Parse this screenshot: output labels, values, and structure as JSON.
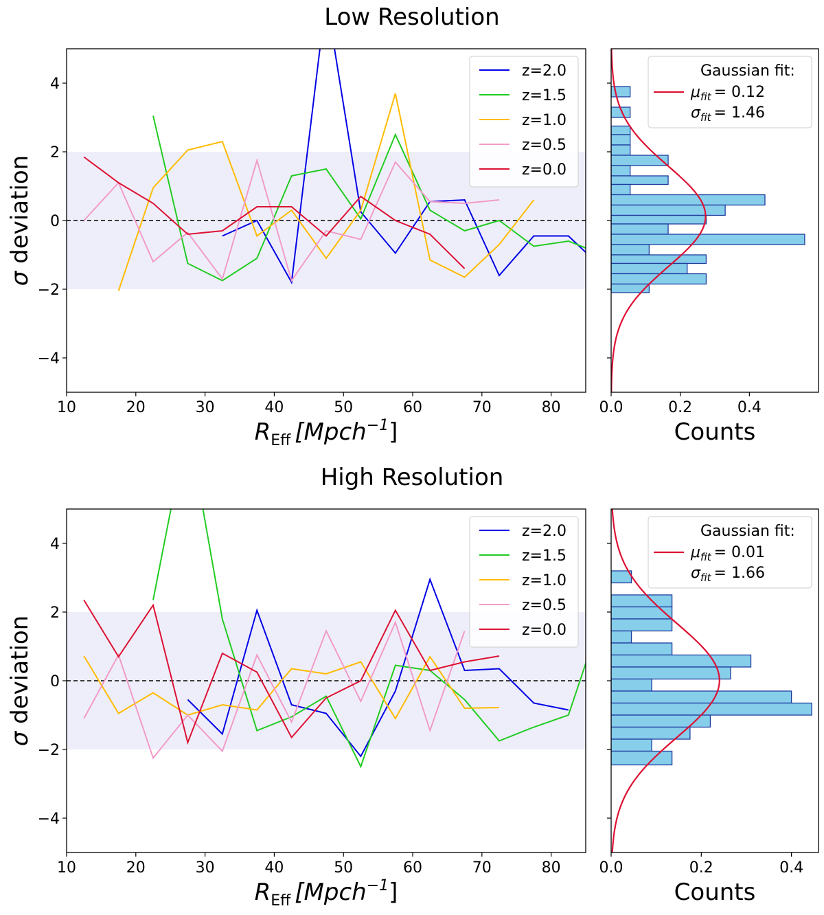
{
  "chart_data": [
    {
      "type": "line",
      "title": "Low Resolution",
      "xlabel_main": "R",
      "xlabel_sub": "Eff",
      "xlabel_unit": "[Mpch",
      "xlabel_exp": "−1",
      "xlabel_close": "]",
      "ylabel_sym": "σ",
      "ylabel": " deviation",
      "xlim": [
        10,
        85
      ],
      "ylim": [
        -5,
        5
      ],
      "xticks": [
        "10",
        "20",
        "30",
        "40",
        "50",
        "60",
        "70",
        "80"
      ],
      "yticks": [
        "−4",
        "−2",
        "0",
        "2",
        "4"
      ],
      "shaded_band": [
        -2,
        2
      ],
      "reference_line": 0,
      "legend_position": "top-right",
      "series": [
        {
          "name": "z=2.0",
          "color": "#0000e6",
          "x": [
            32.5,
            37.5,
            42.5,
            47.5,
            52.5,
            57.5,
            62.5,
            67.5,
            72.5,
            77.5,
            82.5,
            87.5
          ],
          "y": [
            -0.45,
            0.0,
            -1.8,
            6.5,
            0.25,
            -0.95,
            0.55,
            0.6,
            -1.6,
            -0.45,
            -0.45,
            -1.4
          ]
        },
        {
          "name": "z=1.5",
          "color": "#22cc22",
          "x": [
            22.5,
            27.5,
            32.5,
            37.5,
            42.5,
            47.5,
            52.5,
            57.5,
            62.5,
            67.5,
            72.5,
            77.5,
            82.5,
            87.5
          ],
          "y": [
            3.05,
            -1.25,
            -1.75,
            -1.1,
            1.3,
            1.5,
            0.05,
            2.5,
            0.3,
            -0.3,
            0.0,
            -0.75,
            -0.6,
            -1.0
          ]
        },
        {
          "name": "z=1.0",
          "color": "#ffbb00",
          "x": [
            17.5,
            22.5,
            27.5,
            32.5,
            37.5,
            42.5,
            47.5,
            52.5,
            57.5,
            62.5,
            67.5,
            72.5,
            77.5
          ],
          "y": [
            -2.05,
            0.95,
            2.05,
            2.3,
            -0.45,
            0.3,
            -1.1,
            0.3,
            3.7,
            -1.15,
            -1.65,
            -0.7,
            0.6
          ]
        },
        {
          "name": "z=0.5",
          "color": "#f29bc8",
          "x": [
            12.5,
            17.5,
            22.5,
            27.5,
            32.5,
            37.5,
            42.5,
            47.5,
            52.5,
            57.5,
            62.5,
            67.5,
            72.5
          ],
          "y": [
            0.0,
            1.1,
            -1.2,
            -0.35,
            -1.7,
            1.75,
            -1.75,
            -0.3,
            -0.55,
            1.7,
            0.55,
            0.5,
            0.6
          ]
        },
        {
          "name": "z=0.0",
          "color": "#dd1133",
          "x": [
            12.5,
            17.5,
            22.5,
            27.5,
            32.5,
            37.5,
            42.5,
            47.5,
            52.5,
            57.5,
            62.5,
            67.5
          ],
          "y": [
            1.85,
            1.1,
            0.5,
            -0.4,
            -0.3,
            0.4,
            0.4,
            -0.45,
            0.7,
            0.0,
            -0.4,
            -1.4
          ]
        }
      ]
    },
    {
      "type": "bar",
      "orientation": "horizontal",
      "xlabel": "Counts",
      "xlim": [
        0,
        0.6
      ],
      "ylim": [
        -5,
        5
      ],
      "xticks": [
        "0.0",
        "0.2",
        "0.4"
      ],
      "bar_color": "#87ceeb",
      "bar_edge_color": "#1f3c9e",
      "legend_position": "top-right",
      "legend_title": "Gaussian fit:",
      "fit_line_color": "#dd1133",
      "fit_mu": 0.12,
      "fit_sigma": 1.46,
      "mu_text": "= 0.12",
      "sigma_text": "= 1.46",
      "bins": [
        {
          "y0": 3.6,
          "y1": 3.9,
          "count": 0.055
        },
        {
          "y0": 3.0,
          "y1": 3.3,
          "count": 0.055
        },
        {
          "y0": 2.5,
          "y1": 2.75,
          "count": 0.055
        },
        {
          "y0": 2.2,
          "y1": 2.5,
          "count": 0.055
        },
        {
          "y0": 1.9,
          "y1": 2.2,
          "count": 0.055
        },
        {
          "y0": 1.6,
          "y1": 1.9,
          "count": 0.165
        },
        {
          "y0": 1.3,
          "y1": 1.6,
          "count": 0.055
        },
        {
          "y0": 1.05,
          "y1": 1.3,
          "count": 0.165
        },
        {
          "y0": 0.75,
          "y1": 1.05,
          "count": 0.055
        },
        {
          "y0": 0.45,
          "y1": 0.75,
          "count": 0.445
        },
        {
          "y0": 0.15,
          "y1": 0.45,
          "count": 0.33
        },
        {
          "y0": -0.1,
          "y1": 0.15,
          "count": 0.275
        },
        {
          "y0": -0.4,
          "y1": -0.1,
          "count": 0.165
        },
        {
          "y0": -0.7,
          "y1": -0.4,
          "count": 0.56
        },
        {
          "y0": -1.0,
          "y1": -0.7,
          "count": 0.11
        },
        {
          "y0": -1.25,
          "y1": -1.0,
          "count": 0.275
        },
        {
          "y0": -1.55,
          "y1": -1.25,
          "count": 0.22
        },
        {
          "y0": -1.85,
          "y1": -1.55,
          "count": 0.275
        },
        {
          "y0": -2.1,
          "y1": -1.85,
          "count": 0.11
        }
      ]
    },
    {
      "type": "line",
      "title": "High Resolution",
      "xlabel_main": "R",
      "xlabel_sub": "Eff",
      "xlabel_unit": "[Mpch",
      "xlabel_exp": "−1",
      "xlabel_close": "]",
      "ylabel_sym": "σ",
      "ylabel": " deviation",
      "xlim": [
        10,
        85
      ],
      "ylim": [
        -5,
        5
      ],
      "xticks": [
        "10",
        "20",
        "30",
        "40",
        "50",
        "60",
        "70",
        "80"
      ],
      "yticks": [
        "−4",
        "−2",
        "0",
        "2",
        "4"
      ],
      "shaded_band": [
        -2,
        2
      ],
      "reference_line": 0,
      "legend_position": "top-right",
      "series": [
        {
          "name": "z=2.0",
          "color": "#0000e6",
          "x": [
            27.5,
            32.5,
            37.5,
            42.5,
            47.5,
            52.5,
            57.5,
            62.5,
            67.5,
            72.5,
            77.5,
            82.5
          ],
          "y": [
            -0.55,
            -1.55,
            2.05,
            -0.7,
            -0.95,
            -2.2,
            -0.3,
            2.95,
            0.3,
            0.35,
            -0.65,
            -0.85
          ]
        },
        {
          "name": "z=1.5",
          "color": "#22cc22",
          "x": [
            22.5,
            27.5,
            32.5,
            37.5,
            42.5,
            47.5,
            52.5,
            57.5,
            62.5,
            67.5,
            72.5,
            77.5,
            82.5,
            87.5
          ],
          "y": [
            2.35,
            7.5,
            1.8,
            -1.45,
            -1.05,
            -0.45,
            -2.5,
            0.45,
            0.3,
            -0.55,
            -1.75,
            -1.35,
            -1.0,
            2.0
          ]
        },
        {
          "name": "z=1.0",
          "color": "#ffbb00",
          "x": [
            12.5,
            17.5,
            22.5,
            27.5,
            32.5,
            37.5,
            42.5,
            47.5,
            52.5,
            57.5,
            62.5,
            67.5,
            72.5
          ],
          "y": [
            0.72,
            -0.95,
            -0.35,
            -1.0,
            -0.7,
            -0.85,
            0.35,
            0.2,
            0.55,
            -1.1,
            0.7,
            -0.8,
            -0.78
          ]
        },
        {
          "name": "z=0.5",
          "color": "#f29bc8",
          "x": [
            12.5,
            17.5,
            22.5,
            27.5,
            32.5,
            37.5,
            42.5,
            47.5,
            52.5,
            57.5,
            62.5,
            67.5
          ],
          "y": [
            -1.1,
            0.75,
            -2.25,
            -1.0,
            -2.05,
            0.75,
            -1.2,
            1.45,
            -0.6,
            1.7,
            -1.45,
            1.45
          ]
        },
        {
          "name": "z=0.0",
          "color": "#dd1133",
          "x": [
            12.5,
            17.5,
            22.5,
            27.5,
            32.5,
            37.5,
            42.5,
            47.5,
            52.5,
            57.5,
            62.5,
            67.5,
            72.5
          ],
          "y": [
            2.35,
            0.7,
            2.2,
            -1.8,
            0.8,
            0.25,
            -1.65,
            -0.5,
            0.0,
            2.05,
            0.3,
            0.55,
            0.72
          ]
        }
      ]
    },
    {
      "type": "bar",
      "orientation": "horizontal",
      "xlabel": "Counts",
      "xlim": [
        0,
        0.46
      ],
      "ylim": [
        -5,
        5
      ],
      "xticks": [
        "0.0",
        "0.2",
        "0.4"
      ],
      "bar_color": "#87ceeb",
      "bar_edge_color": "#1f3c9e",
      "legend_position": "top-right",
      "legend_title": "Gaussian fit:",
      "fit_line_color": "#dd1133",
      "fit_mu": 0.01,
      "fit_sigma": 1.66,
      "mu_text": "= 0.01",
      "sigma_text": "= 1.66",
      "bins": [
        {
          "y0": 2.85,
          "y1": 3.2,
          "count": 0.045
        },
        {
          "y0": 2.15,
          "y1": 2.5,
          "count": 0.135
        },
        {
          "y0": 1.8,
          "y1": 2.15,
          "count": 0.135
        },
        {
          "y0": 1.45,
          "y1": 1.8,
          "count": 0.135
        },
        {
          "y0": 1.1,
          "y1": 1.45,
          "count": 0.045
        },
        {
          "y0": 0.75,
          "y1": 1.1,
          "count": 0.135
        },
        {
          "y0": 0.4,
          "y1": 0.75,
          "count": 0.31
        },
        {
          "y0": 0.05,
          "y1": 0.4,
          "count": 0.265
        },
        {
          "y0": -0.3,
          "y1": 0.05,
          "count": 0.09
        },
        {
          "y0": -0.65,
          "y1": -0.3,
          "count": 0.4
        },
        {
          "y0": -1.0,
          "y1": -0.65,
          "count": 0.445
        },
        {
          "y0": -1.35,
          "y1": -1.0,
          "count": 0.22
        },
        {
          "y0": -1.7,
          "y1": -1.35,
          "count": 0.175
        },
        {
          "y0": -2.05,
          "y1": -1.7,
          "count": 0.09
        },
        {
          "y0": -2.45,
          "y1": -2.05,
          "count": 0.135
        }
      ]
    }
  ]
}
